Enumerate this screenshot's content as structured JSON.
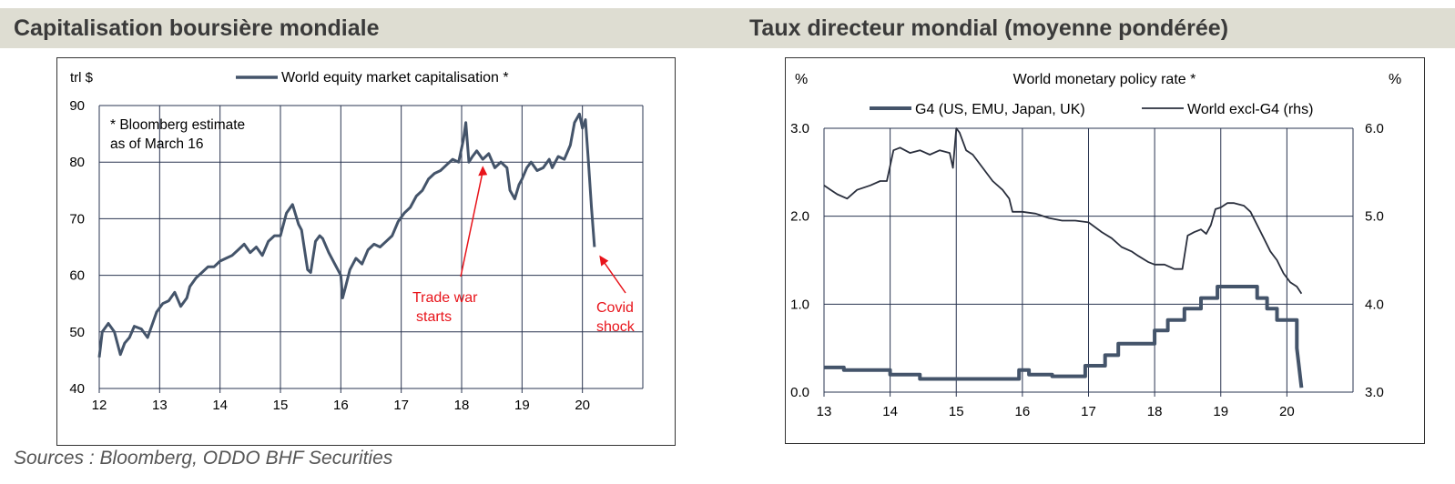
{
  "header": {
    "left_title": "Capitalisation boursière mondiale",
    "right_title": "Taux directeur mondial (moyenne pondérée)"
  },
  "sources": "Sources : Bloomberg, ODDO BHF Securities",
  "colors": {
    "series": "#44546a",
    "annotation": "#e8141b",
    "grid": "#2a3550",
    "header_band": "#deddd2"
  },
  "chart_data": [
    {
      "type": "line",
      "title": "",
      "ylabel": "trl $",
      "xlabel": "",
      "legend": [
        "World equity market capitalisation *"
      ],
      "note_lines": [
        "* Bloomberg estimate",
        "as of March 16"
      ],
      "xlim": [
        12,
        21
      ],
      "ylim": [
        40,
        90
      ],
      "xticks": [
        12,
        13,
        14,
        15,
        16,
        17,
        18,
        19,
        20
      ],
      "xtick_labels": [
        "12",
        "13",
        "14",
        "15",
        "16",
        "17",
        "18",
        "19",
        "20"
      ],
      "yticks": [
        40,
        50,
        60,
        70,
        80,
        90
      ],
      "ytick_labels": [
        "40",
        "50",
        "60",
        "70",
        "80",
        "90"
      ],
      "grid": true,
      "series": [
        {
          "name": "World equity market capitalisation *",
          "x": [
            12.0,
            12.05,
            12.15,
            12.25,
            12.35,
            12.42,
            12.5,
            12.58,
            12.7,
            12.8,
            12.9,
            12.95,
            13.05,
            13.15,
            13.25,
            13.35,
            13.45,
            13.5,
            13.6,
            13.7,
            13.8,
            13.9,
            14.0,
            14.1,
            14.2,
            14.3,
            14.4,
            14.5,
            14.6,
            14.7,
            14.8,
            14.9,
            15.0,
            15.1,
            15.2,
            15.3,
            15.35,
            15.45,
            15.5,
            15.58,
            15.65,
            15.7,
            15.8,
            15.9,
            16.0,
            16.03,
            16.08,
            16.15,
            16.25,
            16.35,
            16.45,
            16.55,
            16.65,
            16.75,
            16.85,
            16.95,
            17.05,
            17.15,
            17.25,
            17.35,
            17.45,
            17.55,
            17.65,
            17.75,
            17.85,
            17.95,
            18.03,
            18.07,
            18.12,
            18.18,
            18.25,
            18.35,
            18.45,
            18.55,
            18.65,
            18.7,
            18.75,
            18.8,
            18.88,
            18.95,
            19.0,
            19.08,
            19.15,
            19.25,
            19.35,
            19.45,
            19.5,
            19.55,
            19.6,
            19.7,
            19.8,
            19.87,
            19.95,
            20.0,
            20.05,
            20.1,
            20.15,
            20.2
          ],
          "values": [
            45.5,
            50.0,
            51.5,
            50.0,
            46.0,
            48.0,
            49.0,
            51.0,
            50.5,
            49.0,
            52.0,
            53.5,
            55.0,
            55.5,
            57.0,
            54.5,
            56.0,
            58.0,
            59.5,
            60.5,
            61.5,
            61.5,
            62.5,
            63.0,
            63.5,
            64.5,
            65.5,
            64.0,
            65.0,
            63.5,
            66.0,
            67.0,
            67.0,
            71.0,
            72.5,
            69.0,
            68.0,
            61.0,
            60.5,
            66.0,
            67.0,
            66.5,
            64.0,
            62.0,
            60.0,
            56.0,
            58.0,
            61.0,
            63.0,
            62.0,
            64.5,
            65.5,
            65.0,
            66.0,
            67.0,
            69.5,
            71.0,
            72.0,
            74.0,
            75.0,
            77.0,
            78.0,
            78.5,
            79.5,
            80.5,
            80.0,
            84.0,
            87.0,
            80.0,
            81.0,
            82.0,
            80.5,
            81.5,
            79.0,
            80.0,
            79.5,
            79.0,
            75.0,
            73.5,
            76.0,
            77.0,
            79.0,
            80.0,
            78.5,
            79.0,
            80.5,
            79.0,
            80.0,
            81.0,
            80.5,
            83.0,
            87.0,
            88.5,
            86.0,
            87.5,
            80.0,
            72.0,
            65.0
          ]
        }
      ],
      "annotations": [
        {
          "label_lines": [
            "Trade war",
            "starts"
          ],
          "color": "#e8141b",
          "points_to_x": 18.35,
          "points_to_y": 80.0
        },
        {
          "label_lines": [
            "Covid",
            "shock"
          ],
          "color": "#e8141b",
          "points_to_x": 20.25,
          "points_to_y": 64.5
        }
      ]
    },
    {
      "type": "line",
      "title": "World monetary policy rate *",
      "ylabel": "%",
      "y2label": "%",
      "xlabel": "",
      "xlim": [
        13,
        21
      ],
      "ylim": [
        0.0,
        3.0
      ],
      "y2lim": [
        3.0,
        6.0
      ],
      "xticks": [
        13,
        14,
        15,
        16,
        17,
        18,
        19,
        20
      ],
      "xtick_labels": [
        "13",
        "14",
        "15",
        "16",
        "17",
        "18",
        "19",
        "20"
      ],
      "yticks": [
        0.0,
        1.0,
        2.0,
        3.0
      ],
      "ytick_labels": [
        "0.0",
        "1.0",
        "2.0",
        "3.0"
      ],
      "y2ticks": [
        3.0,
        4.0,
        5.0,
        6.0
      ],
      "y2tick_labels": [
        "3.0",
        "4.0",
        "5.0",
        "6.0"
      ],
      "grid": true,
      "legend_position": "top",
      "series": [
        {
          "name": "G4 (US, EMU, Japan, UK)",
          "axis": "left",
          "x": [
            13.0,
            13.3,
            13.3,
            14.0,
            14.0,
            14.45,
            14.45,
            15.95,
            15.95,
            16.1,
            16.1,
            16.45,
            16.45,
            16.95,
            16.95,
            17.25,
            17.25,
            17.45,
            17.45,
            17.7,
            17.7,
            18.0,
            18.0,
            18.2,
            18.2,
            18.45,
            18.45,
            18.7,
            18.7,
            18.95,
            18.95,
            19.2,
            19.2,
            19.55,
            19.55,
            19.7,
            19.7,
            19.85,
            19.85,
            20.15,
            20.15,
            20.22
          ],
          "values": [
            0.28,
            0.28,
            0.25,
            0.25,
            0.2,
            0.2,
            0.15,
            0.15,
            0.25,
            0.25,
            0.2,
            0.2,
            0.18,
            0.18,
            0.3,
            0.3,
            0.42,
            0.42,
            0.55,
            0.55,
            0.55,
            0.55,
            0.7,
            0.7,
            0.82,
            0.82,
            0.95,
            0.95,
            1.07,
            1.07,
            1.2,
            1.2,
            1.2,
            1.2,
            1.07,
            1.07,
            0.95,
            0.95,
            0.82,
            0.82,
            0.5,
            0.05
          ]
        },
        {
          "name": "World excl-G4 (rhs)",
          "axis": "right",
          "x": [
            13.0,
            13.1,
            13.2,
            13.35,
            13.5,
            13.7,
            13.85,
            13.95,
            14.05,
            14.15,
            14.3,
            14.45,
            14.6,
            14.75,
            14.9,
            14.95,
            15.0,
            15.05,
            15.15,
            15.25,
            15.4,
            15.55,
            15.7,
            15.8,
            15.85,
            16.0,
            16.2,
            16.4,
            16.6,
            16.8,
            17.0,
            17.2,
            17.35,
            17.5,
            17.65,
            17.75,
            17.9,
            18.0,
            18.15,
            18.3,
            18.42,
            18.5,
            18.6,
            18.7,
            18.78,
            18.85,
            18.92,
            19.0,
            19.1,
            19.2,
            19.35,
            19.45,
            19.55,
            19.65,
            19.75,
            19.85,
            19.95,
            20.05,
            20.15,
            20.22
          ],
          "values": [
            5.35,
            5.3,
            5.25,
            5.2,
            5.3,
            5.35,
            5.4,
            5.4,
            5.75,
            5.78,
            5.72,
            5.75,
            5.7,
            5.75,
            5.72,
            5.55,
            6.0,
            5.95,
            5.75,
            5.7,
            5.55,
            5.4,
            5.3,
            5.2,
            5.05,
            5.05,
            5.03,
            4.98,
            4.95,
            4.95,
            4.93,
            4.82,
            4.75,
            4.65,
            4.6,
            4.55,
            4.48,
            4.45,
            4.45,
            4.4,
            4.4,
            4.78,
            4.82,
            4.85,
            4.8,
            4.9,
            5.08,
            5.1,
            5.15,
            5.15,
            5.12,
            5.05,
            4.9,
            4.75,
            4.6,
            4.5,
            4.35,
            4.25,
            4.2,
            4.12
          ]
        }
      ]
    }
  ]
}
